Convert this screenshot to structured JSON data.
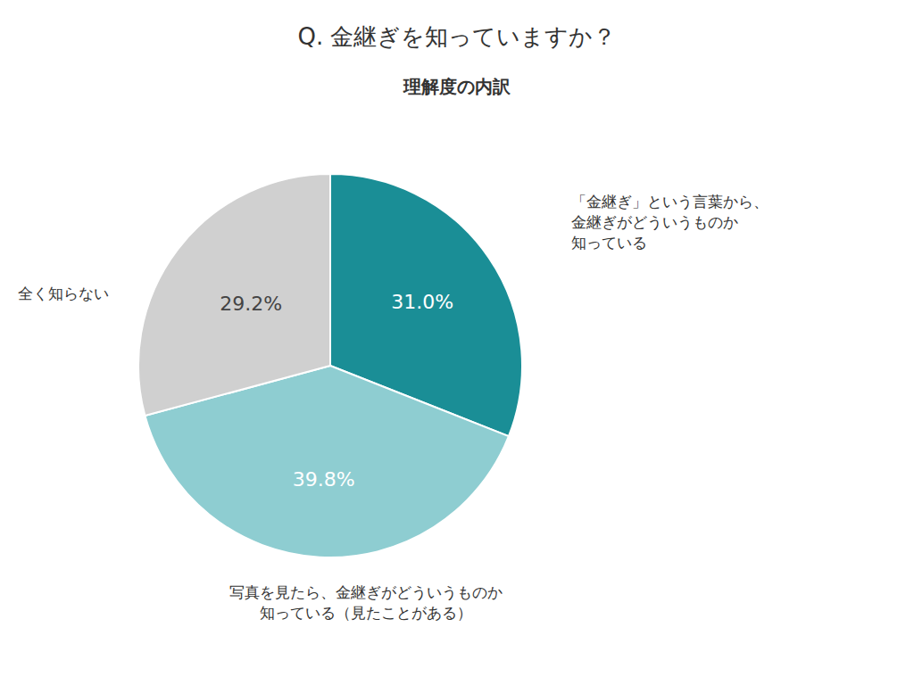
{
  "chart_data": {
    "type": "pie",
    "title": "Q.  金継ぎを知っていますか？",
    "subtitle": "理解度の内訳",
    "categories": [
      "「金継ぎ」という言葉から、\n金継ぎがどういうものか\n知っている",
      "写真を見たら、金継ぎがどういうものか\n知っている（見たことがある）",
      "全く知らない"
    ],
    "values": [
      31.0,
      39.8,
      29.2
    ],
    "value_labels": [
      "31.0%",
      "39.8%",
      "29.2%"
    ],
    "colors": [
      "#1a8e96",
      "#8ecdd1",
      "#d0d0d0"
    ],
    "data_labels": true
  }
}
